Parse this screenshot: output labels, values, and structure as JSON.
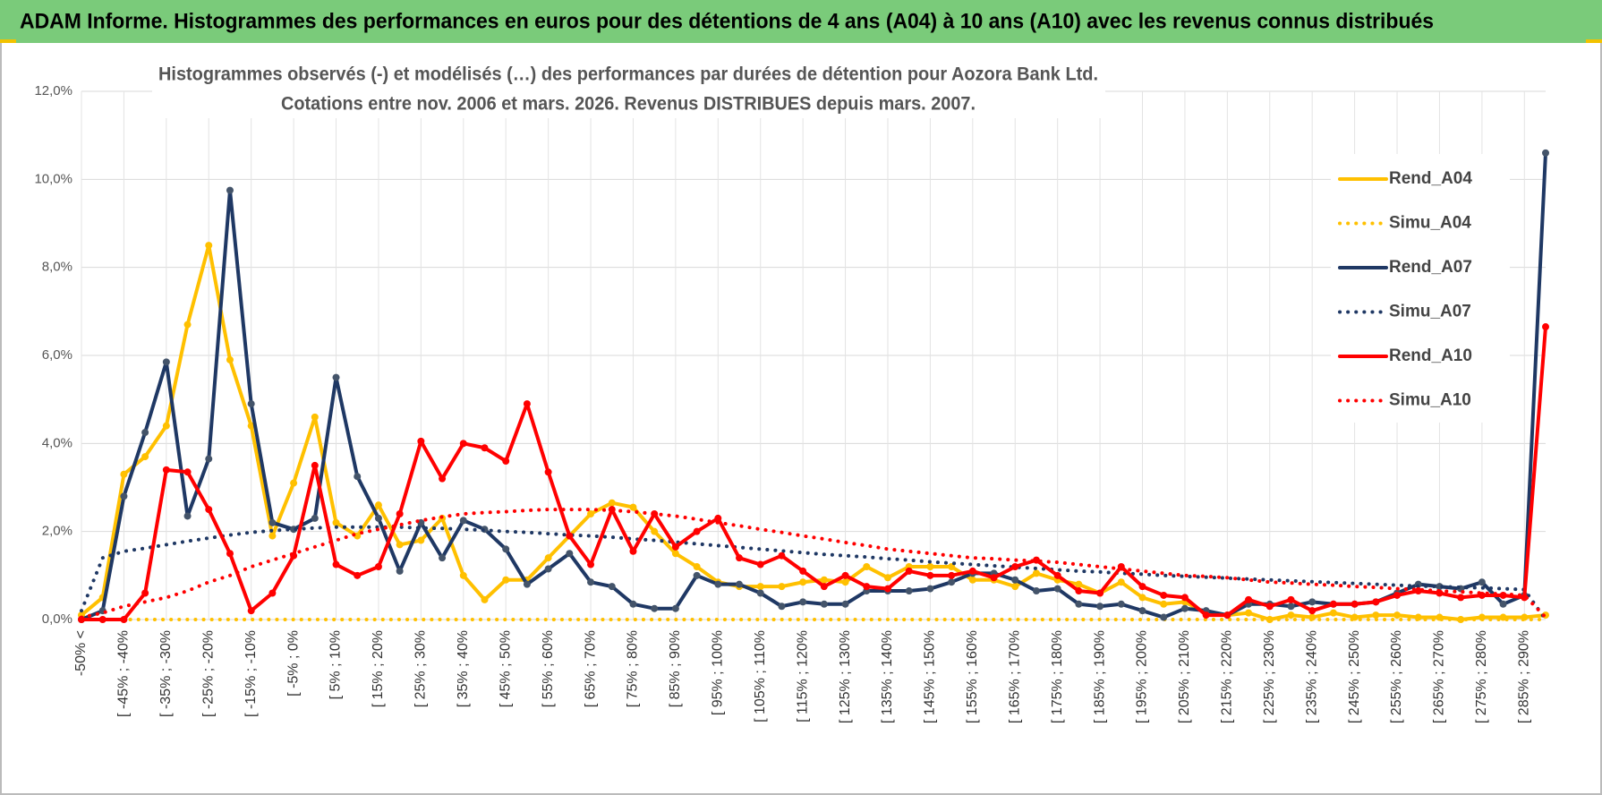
{
  "chart_data": {
    "type": "line",
    "banner": "ADAM Informe. Histogrammes des performances en euros pour des détentions de 4 ans (A04) à 10 ans (A10) avec les revenus connus distribués",
    "title": "Histogrammes observés (-) et modélisés (…) des performances par durées de détention pour Aozora Bank Ltd.",
    "subtitle": "Cotations entre nov. 2006 et mars. 2026.  Revenus DISTRIBUES depuis mars. 2007.",
    "categories": [
      "-50% <",
      null,
      "[ -45% ; -40%",
      null,
      "[ -35% ; -30%",
      null,
      "[ -25% ; -20%",
      null,
      "[ -15% ; -10%",
      null,
      "[ -5% ; 0%",
      null,
      "[ 5% ; 10%",
      null,
      "[ 15% ; 20%",
      null,
      "[ 25% ; 30%",
      null,
      "[ 35% ; 40%",
      null,
      "[ 45% ; 50%",
      null,
      "[ 55% ; 60%",
      null,
      "[ 65% ; 70%",
      null,
      "[ 75% ; 80%",
      null,
      "[ 85% ; 90%",
      null,
      "[ 95% ; 100%",
      null,
      "[ 105% ; 110%",
      null,
      "[ 115% ; 120%",
      null,
      "[ 125% ; 130%",
      null,
      "[ 135% ; 140%",
      null,
      "[ 145% ; 150%",
      null,
      "[ 155% ; 160%",
      null,
      "[ 165% ; 170%",
      null,
      "[ 175% ; 180%",
      null,
      "[ 185% ; 190%",
      null,
      "[ 195% ; 200%",
      null,
      "[ 205% ; 210%",
      null,
      "[ 215% ; 220%",
      null,
      "[ 225% ; 230%",
      null,
      "[ 235% ; 240%",
      null,
      "[ 245% ; 250%",
      null,
      "[ 255% ; 260%",
      null,
      "[ 265% ; 270%",
      null,
      "[ 275% ; 280%",
      null,
      "[ 285% ; 290%",
      null
    ],
    "series": [
      {
        "name": "Rend_A04",
        "color": "#FFC000",
        "line_style": "solid",
        "values": [
          0.1,
          0.5,
          3.3,
          3.7,
          4.4,
          6.7,
          8.5,
          5.9,
          4.4,
          1.9,
          3.1,
          4.6,
          2.2,
          1.9,
          2.6,
          1.7,
          1.8,
          2.3,
          1.0,
          0.45,
          0.9,
          0.9,
          1.4,
          1.9,
          2.4,
          2.65,
          2.55,
          2.0,
          1.5,
          1.2,
          0.85,
          0.75,
          0.75,
          0.75,
          0.85,
          0.9,
          0.85,
          1.2,
          0.95,
          1.2,
          1.2,
          1.2,
          0.9,
          0.9,
          0.75,
          1.05,
          0.9,
          0.8,
          0.6,
          0.85,
          0.5,
          0.35,
          0.4,
          0.15,
          0.1,
          0.15,
          0.0,
          0.1,
          0.05,
          0.15,
          0.05,
          0.1,
          0.1,
          0.05,
          0.05,
          0.0,
          0.05,
          0.05,
          0.05,
          0.1
        ]
      },
      {
        "name": "Simu_A04",
        "color": "#FFC000",
        "line_style": "dotted",
        "values": [
          0,
          0,
          0,
          0,
          0,
          0,
          0,
          0,
          0,
          0,
          0,
          0,
          0,
          0,
          0,
          0,
          0,
          0,
          0,
          0,
          0,
          0,
          0,
          0,
          0,
          0,
          0,
          0,
          0,
          0,
          0,
          0,
          0,
          0,
          0,
          0,
          0,
          0,
          0,
          0,
          0,
          0,
          0,
          0,
          0,
          0,
          0,
          0,
          0,
          0,
          0,
          0,
          0,
          0,
          0,
          0,
          0,
          0,
          0,
          0,
          0,
          0,
          0,
          0,
          0,
          0,
          0,
          0,
          0,
          0
        ]
      },
      {
        "name": "Rend_A07",
        "color": "#1F3864",
        "line_style": "solid",
        "values": [
          0.0,
          0.2,
          2.8,
          4.25,
          5.85,
          2.35,
          3.65,
          9.75,
          4.9,
          2.2,
          2.05,
          2.3,
          5.5,
          3.25,
          2.3,
          1.1,
          2.2,
          1.4,
          2.25,
          2.05,
          1.6,
          0.8,
          1.15,
          1.5,
          0.85,
          0.75,
          0.35,
          0.25,
          0.25,
          1.0,
          0.8,
          0.8,
          0.6,
          0.3,
          0.4,
          0.35,
          0.35,
          0.65,
          0.65,
          0.65,
          0.7,
          0.85,
          1.05,
          1.05,
          0.9,
          0.65,
          0.7,
          0.35,
          0.3,
          0.35,
          0.2,
          0.05,
          0.25,
          0.2,
          0.1,
          0.35,
          0.35,
          0.3,
          0.4,
          0.35,
          0.35,
          0.4,
          0.6,
          0.8,
          0.75,
          0.7,
          0.85,
          0.35,
          0.55,
          10.6
        ]
      },
      {
        "name": "Simu_A07",
        "color": "#1F3864",
        "line_style": "dotted",
        "values": [
          0.2,
          1.4,
          1.55,
          1.62,
          1.7,
          1.78,
          1.85,
          1.92,
          1.98,
          2.02,
          2.05,
          2.08,
          2.1,
          2.1,
          2.1,
          2.1,
          2.08,
          2.07,
          2.05,
          2.03,
          2.0,
          1.98,
          1.95,
          1.92,
          1.9,
          1.87,
          1.83,
          1.8,
          1.76,
          1.72,
          1.68,
          1.64,
          1.6,
          1.56,
          1.52,
          1.48,
          1.45,
          1.42,
          1.38,
          1.35,
          1.31,
          1.28,
          1.25,
          1.22,
          1.19,
          1.16,
          1.13,
          1.1,
          1.08,
          1.05,
          1.03,
          1.0,
          0.98,
          0.96,
          0.94,
          0.92,
          0.9,
          0.88,
          0.86,
          0.84,
          0.82,
          0.8,
          0.78,
          0.76,
          0.75,
          0.73,
          0.72,
          0.7,
          0.68,
          0.0
        ]
      },
      {
        "name": "Rend_A10",
        "color": "#FF0000",
        "line_style": "solid",
        "values": [
          0.0,
          0.0,
          0.0,
          0.6,
          3.4,
          3.35,
          2.5,
          1.5,
          0.2,
          0.6,
          1.45,
          3.5,
          1.25,
          1.0,
          1.2,
          2.4,
          4.05,
          3.2,
          4.0,
          3.9,
          3.6,
          4.9,
          3.35,
          1.9,
          1.25,
          2.5,
          1.55,
          2.4,
          1.65,
          2.0,
          2.3,
          1.4,
          1.25,
          1.45,
          1.1,
          0.75,
          1.0,
          0.75,
          0.7,
          1.1,
          1.0,
          1.0,
          1.1,
          0.95,
          1.2,
          1.35,
          1.0,
          0.65,
          0.6,
          1.2,
          0.75,
          0.55,
          0.5,
          0.1,
          0.1,
          0.45,
          0.3,
          0.45,
          0.2,
          0.35,
          0.35,
          0.4,
          0.55,
          0.65,
          0.6,
          0.5,
          0.55,
          0.55,
          0.5,
          6.65
        ]
      },
      {
        "name": "Simu_A10",
        "color": "#FF0000",
        "line_style": "dotted",
        "values": [
          0.05,
          0.15,
          0.3,
          0.4,
          0.5,
          0.65,
          0.85,
          1.0,
          1.2,
          1.35,
          1.5,
          1.65,
          1.8,
          1.95,
          2.05,
          2.15,
          2.25,
          2.33,
          2.4,
          2.43,
          2.45,
          2.48,
          2.5,
          2.5,
          2.5,
          2.48,
          2.45,
          2.4,
          2.35,
          2.28,
          2.2,
          2.13,
          2.05,
          1.98,
          1.9,
          1.83,
          1.75,
          1.68,
          1.6,
          1.55,
          1.5,
          1.45,
          1.4,
          1.38,
          1.35,
          1.33,
          1.3,
          1.25,
          1.2,
          1.15,
          1.1,
          1.05,
          1.0,
          0.98,
          0.95,
          0.9,
          0.85,
          0.83,
          0.8,
          0.78,
          0.75,
          0.73,
          0.7,
          0.68,
          0.65,
          0.63,
          0.6,
          0.58,
          0.55,
          0.05
        ]
      }
    ],
    "ylim": [
      0,
      12
    ],
    "yticks": [
      {
        "value": 0,
        "label": "0,0%"
      },
      {
        "value": 2,
        "label": "2,0%"
      },
      {
        "value": 4,
        "label": "4,0%"
      },
      {
        "value": 6,
        "label": "6,0%"
      },
      {
        "value": 8,
        "label": "8,0%"
      },
      {
        "value": 10,
        "label": "10,0%"
      },
      {
        "value": 12,
        "label": "12,0%"
      }
    ],
    "grid": true,
    "legend": "upper right"
  }
}
